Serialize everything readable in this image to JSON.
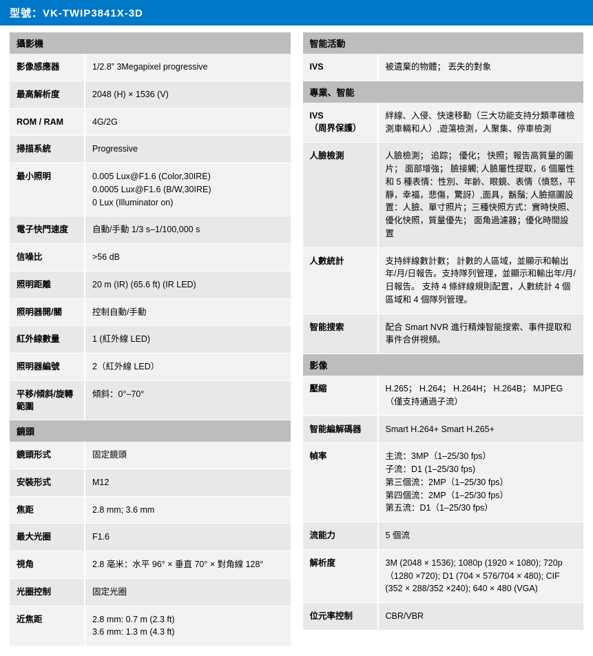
{
  "header": {
    "prefix": "型號：",
    "model": "VK-TWIP3841X-3D"
  },
  "left": {
    "sections": [
      {
        "title": "攝影機",
        "rows": [
          {
            "k": "影像感應器",
            "v": "1/2.8”  3Megapixel progressive"
          },
          {
            "k": "最高解析度",
            "v": "2048 (H) × 1536 (V)"
          },
          {
            "k": "ROM / RAM",
            "v": "4G/2G"
          },
          {
            "k": "掃描系統",
            "v": "Progressive"
          },
          {
            "k": "最小照明",
            "v": "0.005 Lux@F1.6 (Color,30IRE)\n0.0005 Lux@F1.6 (B/W,30IRE)\n0 Lux (Illuminator on)"
          },
          {
            "k": "電子快門速度",
            "v": "自動/手動  1/3 s–1/100,000 s"
          },
          {
            "k": "信噪比",
            "v": ">56 dB"
          },
          {
            "k": "照明距離",
            "v": "20 m (IR) (65.6 ft) (IR LED)"
          },
          {
            "k": "照明器開/關",
            "v": "控制自動/手動"
          },
          {
            "k": "紅外線數量",
            "v": "1 (紅外線 LED)"
          },
          {
            "k": "照明器編號",
            "v": "2（紅外線 LED）"
          },
          {
            "k": "平移/傾斜/旋轉範圍",
            "v": "傾斜：0°–70°"
          }
        ]
      },
      {
        "title": "鏡頭",
        "rows": [
          {
            "k": "鏡頭形式",
            "v": "固定鏡頭"
          },
          {
            "k": "安裝形式",
            "v": "M12"
          },
          {
            "k": "焦距",
            "v": "2.8 mm; 3.6 mm"
          },
          {
            "k": "最大光圈",
            "v": "F1.6"
          },
          {
            "k": "視角",
            "v": "2.8 毫米：水平 96° × 垂直 70° × 對角線 128°"
          },
          {
            "k": "光圈控制",
            "v": "固定光圈"
          },
          {
            "k": "近焦距",
            "v": "2.8 mm: 0.7 m (2.3 ft)\n3.6 mm: 1.3 m (4.3 ft)"
          }
        ]
      }
    ]
  },
  "right": {
    "sections": [
      {
        "title": "智能活動",
        "rows": [
          {
            "k": "IVS",
            "v": "被遺棄的物體；  丟失的對象"
          }
        ]
      },
      {
        "title": "專業、智能",
        "rows": [
          {
            "k": "IVS\n（周界保護）",
            "v": "絆線、入侵、快速移動（三大功能支持分類準確檢測車輛和人）,遊蕩檢測，人聚集、停車檢測"
          },
          {
            "k": "人臉檢測",
            "v": "人臉檢測； 追踪； 優化； 快照；報告高質量的圖片； 面部增強； 臉接觸;  人臉屬性提取，6 個屬性和 5 種表情：性別、年齡、眼鏡、表情（憤怒，平靜，幸福，悲傷，驚訝）,面具，鬍鬚;  人臉摳圖設置：人臉、單寸照片；三種快照方式：實時快照、優化快照，質量優先；  面角過濾器；優化時間設置"
          },
          {
            "k": "人數統計",
            "v": "支持絆線數計數； 計數的人區域，並顯示和輸出年/月/日報告。支持隊列管理，並顯示和輸出年/月/日報告。 支持 4 條絆線規則配置，人數統計 4 個區域和 4 個隊列管理。"
          },
          {
            "k": "智能搜索",
            "v": "配合 Smart NVR 進行精煉智能搜索、事件提取和事件合併視頻。"
          }
        ]
      },
      {
        "title": "影像",
        "rows": [
          {
            "k": "壓縮",
            "v": "H.265；  H.264；  H.264H；  H.264B；  MJPEG（僅支持通過子流）"
          },
          {
            "k": "智能編解碼器",
            "v": "Smart H.264+ Smart H.265+"
          },
          {
            "k": "幀率",
            "v": "主流：3MP（1–25/30 fps）\n子流：D1 (1–25/30 fps)\n第三個流：2MP（1–25/30 fps）\n第四個流：2MP（1–25/30 fps）\n第五流：D1（1–25/30 fps）"
          },
          {
            "k": "流能力",
            "v": "5 個流"
          },
          {
            "k": "解析度",
            "v": "3M (2048 × 1536); 1080p (1920 × 1080); 720p（1280 ×720); D1 (704 × 576/704 × 480); CIF (352 × 288/352 ×240); 640 × 480 (VGA)"
          },
          {
            "k": "位元率控制",
            "v": "CBR/VBR"
          }
        ]
      }
    ]
  }
}
